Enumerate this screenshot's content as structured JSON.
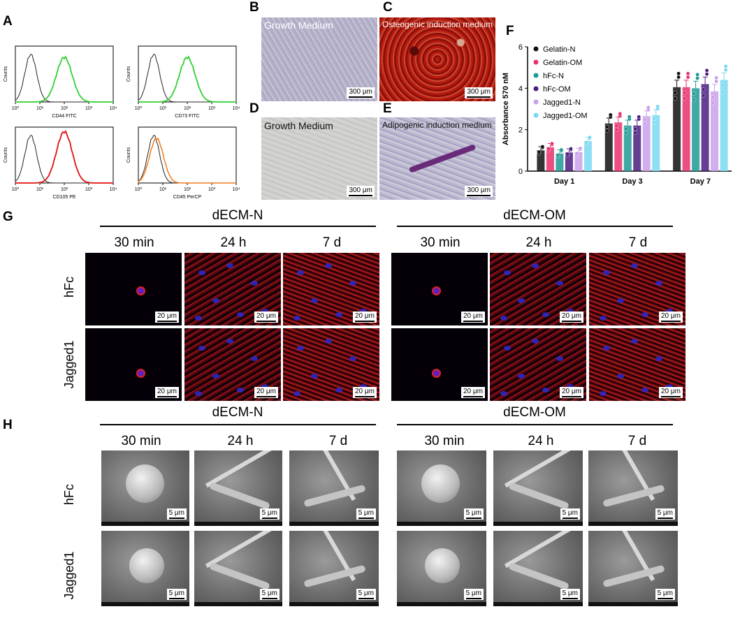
{
  "panel_letters": {
    "A": "A",
    "B": "B",
    "C": "C",
    "D": "D",
    "E": "E",
    "F": "F",
    "G": "G",
    "H": "H"
  },
  "flow": {
    "ytick_counts": "Counts",
    "xticks": [
      "10⁰",
      "10¹",
      "10²",
      "10³",
      "10⁴"
    ],
    "plots": [
      {
        "marker": "CD44 FITC",
        "color": "#2fd12f"
      },
      {
        "marker": "CD73 FITC",
        "color": "#2fd12f"
      },
      {
        "marker": "CD105 PE",
        "color": "#e01010"
      },
      {
        "marker": "CD45 PerCP",
        "color": "#f07a1a"
      }
    ]
  },
  "micro": {
    "B_label": "Growth Medium",
    "C_label": "Osteogenic induction medium",
    "D_label": "Growth Medium",
    "E_label": "Adipogenic induction medium",
    "scale": "300 μm"
  },
  "chart_data": {
    "type": "bar",
    "ylabel": "Absorbance 570 nM",
    "ylim": [
      0,
      6
    ],
    "yticks": [
      0,
      2,
      4,
      6
    ],
    "categories": [
      "Day 1",
      "Day 3",
      "Day 7"
    ],
    "series": [
      {
        "name": "Gelatin-N",
        "color": "#111111",
        "values": [
          1.0,
          2.3,
          4.05
        ]
      },
      {
        "name": "Gelatin-OM",
        "color": "#e8306e",
        "values": [
          1.15,
          2.35,
          4.05
        ]
      },
      {
        "name": "hFc-N",
        "color": "#1e9a96",
        "values": [
          0.85,
          2.2,
          4.0
        ]
      },
      {
        "name": "hFc-OM",
        "color": "#4a1d80",
        "values": [
          0.9,
          2.2,
          4.2
        ]
      },
      {
        "name": "Jagged1-N",
        "color": "#c9a0ea",
        "values": [
          0.92,
          2.65,
          3.85
        ]
      },
      {
        "name": "Jagged1-OM",
        "color": "#7ad8f2",
        "values": [
          1.45,
          2.7,
          4.4
        ]
      }
    ]
  },
  "G": {
    "groups": [
      "dECM-N",
      "dECM-OM"
    ],
    "times": [
      "30 min",
      "24 h",
      "7 d"
    ],
    "rows": [
      "hFc",
      "Jagged1"
    ],
    "scale": "20 μm"
  },
  "H": {
    "groups": [
      "dECM-N",
      "dECM-OM"
    ],
    "times": [
      "30 min",
      "24 h",
      "7 d"
    ],
    "rows": [
      "hFc",
      "Jagged1"
    ],
    "scale": "5 μm"
  }
}
